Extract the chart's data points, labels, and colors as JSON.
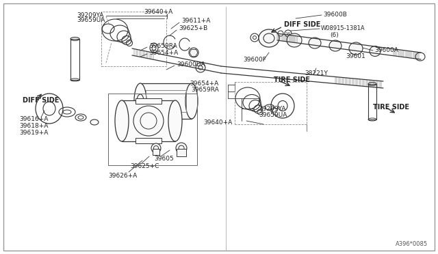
{
  "bg_color": "#ffffff",
  "line_color": "#333333",
  "text_color": "#222222",
  "figsize": [
    6.4,
    3.72
  ],
  "dpi": 100,
  "part_ref": "A396*0085",
  "labels_left_top": {
    "39209YA": [
      165,
      348,
      220,
      348
    ],
    "39659UA": [
      165,
      341,
      220,
      341
    ],
    "39640A": [
      245,
      355,
      245,
      348
    ],
    "39611A": [
      265,
      342,
      245,
      335
    ],
    "39625B": [
      265,
      333,
      245,
      326
    ]
  },
  "labels_left_mid": {
    "39659RA": [
      220,
      300,
      210,
      295
    ],
    "39654A": [
      220,
      291,
      210,
      286
    ],
    "39600DA": [
      255,
      274,
      245,
      268
    ]
  }
}
